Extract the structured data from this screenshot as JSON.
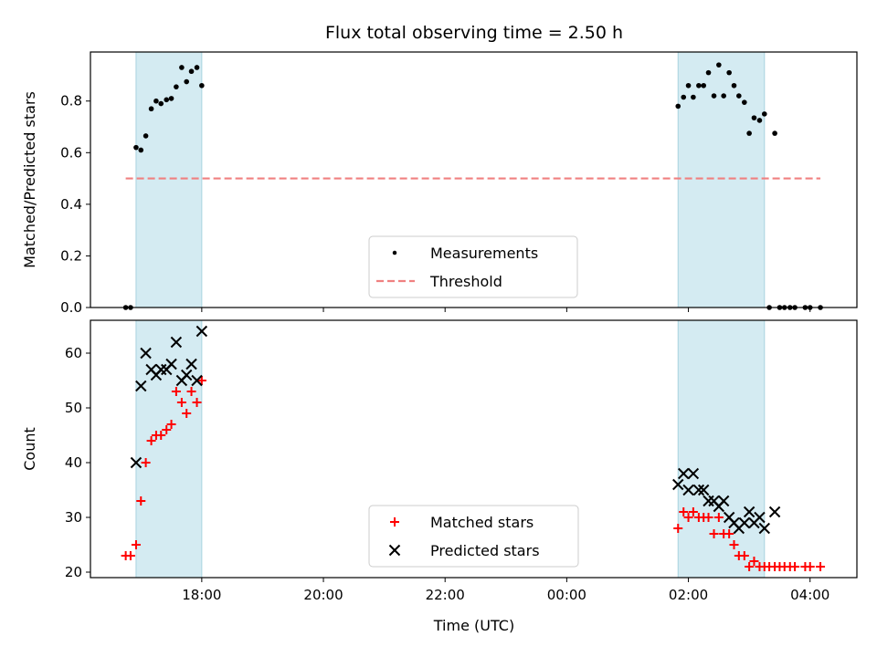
{
  "chart_data": {
    "title": "Flux total observing time = 2.50 h",
    "xlabel": "Time (UTC)",
    "x_unit": "hours relative to 00:00 UTC",
    "x_ticks": [
      {
        "value": -6,
        "label": "18:00"
      },
      {
        "value": -4,
        "label": "20:00"
      },
      {
        "value": -2,
        "label": "22:00"
      },
      {
        "value": 0,
        "label": "00:00"
      },
      {
        "value": 2,
        "label": "02:00"
      },
      {
        "value": 4,
        "label": "04:00"
      }
    ],
    "xlim": [
      -7.83,
      4.77
    ],
    "shaded_intervals": [
      [
        -7.08,
        -6.0
      ],
      [
        1.83,
        3.25
      ]
    ],
    "shade_color": "#d4ebf2",
    "panels": [
      {
        "type": "scatter",
        "ylabel": "Matched/Predicted stars",
        "ylim": [
          0,
          0.99
        ],
        "y_ticks": [
          0.0,
          0.2,
          0.4,
          0.6,
          0.8
        ],
        "y_tick_labels": [
          "0.0",
          "0.2",
          "0.4",
          "0.6",
          "0.8"
        ],
        "legend": {
          "placement": "lower-center"
        },
        "series": [
          {
            "name": "Measurements",
            "marker": "dot",
            "color": "#000000",
            "points": [
              [
                -7.25,
                0.0
              ],
              [
                -7.17,
                0.0
              ],
              [
                -7.08,
                0.62
              ],
              [
                -7.0,
                0.61
              ],
              [
                -6.92,
                0.665
              ],
              [
                -6.83,
                0.77
              ],
              [
                -6.75,
                0.8
              ],
              [
                -6.67,
                0.79
              ],
              [
                -6.58,
                0.805
              ],
              [
                -6.5,
                0.81
              ],
              [
                -6.42,
                0.855
              ],
              [
                -6.33,
                0.93
              ],
              [
                -6.25,
                0.875
              ],
              [
                -6.17,
                0.915
              ],
              [
                -6.08,
                0.93
              ],
              [
                -6.0,
                0.86
              ],
              [
                1.83,
                0.78
              ],
              [
                1.92,
                0.815
              ],
              [
                2.0,
                0.86
              ],
              [
                2.08,
                0.815
              ],
              [
                2.17,
                0.86
              ],
              [
                2.25,
                0.86
              ],
              [
                2.33,
                0.91
              ],
              [
                2.42,
                0.82
              ],
              [
                2.5,
                0.94
              ],
              [
                2.58,
                0.82
              ],
              [
                2.67,
                0.91
              ],
              [
                2.75,
                0.86
              ],
              [
                2.83,
                0.82
              ],
              [
                2.92,
                0.795
              ],
              [
                3.0,
                0.675
              ],
              [
                3.08,
                0.735
              ],
              [
                3.17,
                0.725
              ],
              [
                3.25,
                0.75
              ],
              [
                3.33,
                0.0
              ],
              [
                3.42,
                0.675
              ],
              [
                3.5,
                0.0
              ],
              [
                3.58,
                0.0
              ],
              [
                3.67,
                0.0
              ],
              [
                3.75,
                0.0
              ],
              [
                3.92,
                0.0
              ],
              [
                4.0,
                0.0
              ],
              [
                4.17,
                0.0
              ]
            ]
          },
          {
            "name": "Threshold",
            "marker": "dashed-line",
            "color": "#f08080",
            "points": [
              [
                -7.25,
                0.5
              ],
              [
                4.17,
                0.5
              ]
            ]
          }
        ]
      },
      {
        "type": "scatter",
        "ylabel": "Count",
        "ylim": [
          19,
          66
        ],
        "y_ticks": [
          20,
          30,
          40,
          50,
          60
        ],
        "y_tick_labels": [
          "20",
          "30",
          "40",
          "50",
          "60"
        ],
        "legend": {
          "placement": "lower-center"
        },
        "series": [
          {
            "name": "Matched stars",
            "marker": "plus",
            "color": "#ff0000",
            "points": [
              [
                -7.25,
                23
              ],
              [
                -7.17,
                23
              ],
              [
                -7.08,
                25
              ],
              [
                -7.0,
                33
              ],
              [
                -6.92,
                40
              ],
              [
                -6.83,
                44
              ],
              [
                -6.75,
                45
              ],
              [
                -6.67,
                45
              ],
              [
                -6.58,
                46
              ],
              [
                -6.5,
                47
              ],
              [
                -6.42,
                53
              ],
              [
                -6.33,
                51
              ],
              [
                -6.25,
                49
              ],
              [
                -6.17,
                53
              ],
              [
                -6.08,
                51
              ],
              [
                -6.0,
                55
              ],
              [
                1.83,
                28
              ],
              [
                1.92,
                31
              ],
              [
                2.0,
                30
              ],
              [
                2.08,
                31
              ],
              [
                2.17,
                30
              ],
              [
                2.25,
                30
              ],
              [
                2.33,
                30
              ],
              [
                2.42,
                27
              ],
              [
                2.5,
                30
              ],
              [
                2.58,
                27
              ],
              [
                2.67,
                27
              ],
              [
                2.75,
                25
              ],
              [
                2.83,
                23
              ],
              [
                2.92,
                23
              ],
              [
                3.0,
                21
              ],
              [
                3.08,
                22
              ],
              [
                3.17,
                21
              ],
              [
                3.25,
                21
              ],
              [
                3.33,
                21
              ],
              [
                3.42,
                21
              ],
              [
                3.5,
                21
              ],
              [
                3.58,
                21
              ],
              [
                3.67,
                21
              ],
              [
                3.75,
                21
              ],
              [
                3.92,
                21
              ],
              [
                4.0,
                21
              ],
              [
                4.17,
                21
              ]
            ]
          },
          {
            "name": "Predicted stars",
            "marker": "x",
            "color": "#000000",
            "points": [
              [
                -7.08,
                40
              ],
              [
                -7.0,
                54
              ],
              [
                -6.92,
                60
              ],
              [
                -6.83,
                57
              ],
              [
                -6.75,
                56
              ],
              [
                -6.67,
                57
              ],
              [
                -6.58,
                57
              ],
              [
                -6.5,
                58
              ],
              [
                -6.42,
                62
              ],
              [
                -6.33,
                55
              ],
              [
                -6.25,
                56
              ],
              [
                -6.17,
                58
              ],
              [
                -6.08,
                55
              ],
              [
                -6.0,
                64
              ],
              [
                1.83,
                36
              ],
              [
                1.92,
                38
              ],
              [
                2.0,
                35
              ],
              [
                2.08,
                38
              ],
              [
                2.17,
                35
              ],
              [
                2.25,
                35
              ],
              [
                2.33,
                33
              ],
              [
                2.42,
                33
              ],
              [
                2.5,
                32
              ],
              [
                2.58,
                33
              ],
              [
                2.67,
                30
              ],
              [
                2.75,
                29
              ],
              [
                2.83,
                28
              ],
              [
                2.92,
                29
              ],
              [
                3.0,
                31
              ],
              [
                3.08,
                29
              ],
              [
                3.17,
                30
              ],
              [
                3.25,
                28
              ],
              [
                3.42,
                31
              ]
            ]
          }
        ]
      }
    ]
  }
}
